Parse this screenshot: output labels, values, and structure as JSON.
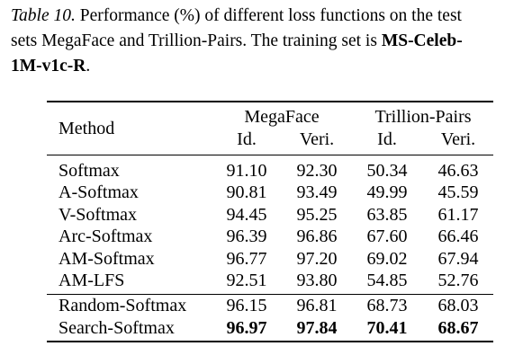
{
  "caption": {
    "label": "Table 10.",
    "line1": " Performance (%) of different loss functions on the test",
    "line2": "sets MegaFace and Trillion-Pairs. The training set is ",
    "bold1": "MS-Celeb-",
    "bold2": "1M-v1c-R",
    "end": "."
  },
  "table": {
    "method_header": "Method",
    "groups": [
      {
        "name": "MegaFace",
        "columns": [
          "Id.",
          "Veri."
        ]
      },
      {
        "name": "Trillion-Pairs",
        "columns": [
          "Id.",
          "Veri."
        ]
      }
    ],
    "sections": [
      [
        [
          "Softmax",
          "91.10",
          "92.30",
          "50.34",
          "46.63"
        ],
        [
          "A-Softmax",
          "90.81",
          "93.49",
          "49.99",
          "45.59"
        ],
        [
          "V-Softmax",
          "94.45",
          "95.25",
          "63.85",
          "61.17"
        ],
        [
          "Arc-Softmax",
          "96.39",
          "96.86",
          "67.60",
          "66.46"
        ],
        [
          "AM-Softmax",
          "96.77",
          "97.20",
          "69.02",
          "67.94"
        ],
        [
          "AM-LFS",
          "92.51",
          "93.80",
          "54.85",
          "52.76"
        ]
      ],
      [
        [
          "Random-Softmax",
          "96.15",
          "96.81",
          "68.73",
          "68.03"
        ],
        [
          "Search-Softmax",
          "96.97",
          "97.84",
          "70.41",
          "68.67"
        ]
      ]
    ]
  }
}
